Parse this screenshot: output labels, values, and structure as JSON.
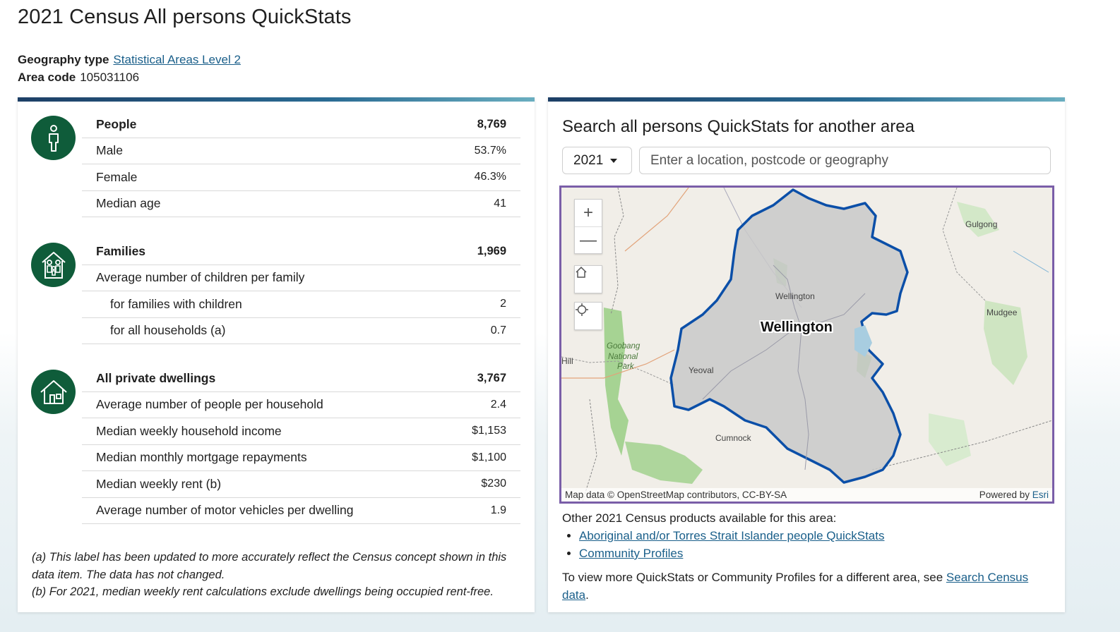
{
  "page": {
    "title": "2021 Census All persons QuickStats",
    "geography_type_label": "Geography type",
    "geography_type_value": "Statistical Areas Level 2",
    "area_code_label": "Area code",
    "area_code_value": "105031106"
  },
  "people": {
    "heading": "People",
    "heading_value": "8,769",
    "rows": [
      {
        "label": "Male",
        "value": "53.7%"
      },
      {
        "label": "Female",
        "value": "46.3%"
      },
      {
        "label": "Median age",
        "value": "41"
      }
    ]
  },
  "families": {
    "heading": "Families",
    "heading_value": "1,969",
    "rows": [
      {
        "label": "Average number of children per family",
        "value": ""
      },
      {
        "label": "for families with children",
        "value": "2"
      },
      {
        "label": "for all households (a)",
        "value": "0.7"
      }
    ]
  },
  "dwellings": {
    "heading": "All private dwellings",
    "heading_value": "3,767",
    "rows": [
      {
        "label": "Average number of people per household",
        "value": "2.4"
      },
      {
        "label": "Median weekly household income",
        "value": "$1,153"
      },
      {
        "label": "Median monthly mortgage repayments",
        "value": "$1,100"
      },
      {
        "label": "Median weekly rent (b)",
        "value": "$230"
      },
      {
        "label": "Average number of motor vehicles per dwelling",
        "value": "1.9"
      }
    ]
  },
  "footnotes": {
    "a": "(a) This label has been updated to more accurately reflect the Census concept shown in this data item. The data has not changed.",
    "b": "(b) For 2021, median weekly rent calculations exclude dwellings being occupied rent-free."
  },
  "search": {
    "title": "Search all persons QuickStats for another area",
    "year": "2021",
    "placeholder": "Enter a location, postcode or geography"
  },
  "map": {
    "zoom_in": "+",
    "zoom_out": "—",
    "labels": {
      "area": "Wellington",
      "town": "Wellington",
      "gulgong": "Gulgong",
      "mudgee": "Mudgee",
      "yeoval": "Yeoval",
      "cumnock": "Cumnock",
      "hill": "Hill",
      "park1": "Goobang",
      "park2": "National",
      "park3": "Park"
    },
    "attribution": "Map data © OpenStreetMap contributors, CC-BY-SA",
    "powered_by": "Powered by",
    "esri": "Esri",
    "colors": {
      "boundary": "#0b4fa8",
      "region_fill": "#c9c9c9",
      "park": "#9fcf8a",
      "water": "#a8cde0"
    }
  },
  "other": {
    "intro": "Other 2021 Census products available for this area:",
    "link1": "Aboriginal and/or Torres Strait Islander people QuickStats",
    "link2": "Community Profiles",
    "more_text": "To view more QuickStats or Community Profiles for a different area, see ",
    "more_link": "Search Census data",
    "more_end": "."
  }
}
